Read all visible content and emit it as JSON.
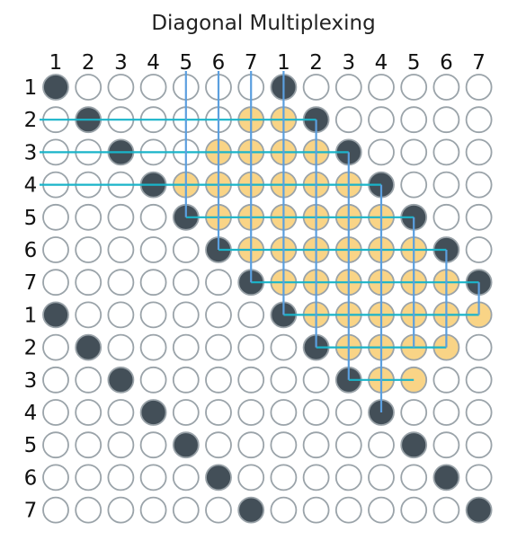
{
  "title": "Diagonal Multiplexing",
  "column_labels": [
    "1",
    "2",
    "3",
    "4",
    "5",
    "6",
    "7",
    "1",
    "2",
    "3",
    "4",
    "5",
    "6",
    "7"
  ],
  "row_labels": [
    "1",
    "2",
    "3",
    "4",
    "5",
    "6",
    "7",
    "1",
    "2",
    "3",
    "4",
    "5",
    "6",
    "7"
  ],
  "colors": {
    "off": "#ffffff",
    "on": "#434f58",
    "lit": "#f9d486",
    "ring": "#9aa3a9",
    "horizontal_wire": "#1ab4c9",
    "vertical_wire": "#5b9fdf"
  },
  "grid": [
    "DOOOOOODOOOOOO",
    "ODOOOOLLDOOOOO",
    "OODOOLLLLDOOOO",
    "OOODLLLLLLDOOO",
    "OOOODLLLLLLDOO",
    "OOOOODLLLLLLDO",
    "OOOOOODLLLLLLD",
    "DOOOOOODLLLLLL",
    "ODOOOOOODLLLLO",
    "OODOOOOOODLLOO",
    "OOODOOOOOODOOO",
    "OOOODOOOOOODOO",
    "OOOOODOOOOOODO",
    "OOOOOODOOOOOOD"
  ],
  "horizontal_wires": [
    {
      "row": 1,
      "from_col": 0,
      "to_col": 8
    },
    {
      "row": 2,
      "from_col": 0,
      "to_col": 9
    },
    {
      "row": 3,
      "from_col": 0,
      "to_col": 10
    },
    {
      "row": 4,
      "from_col": 4,
      "to_col": 11
    },
    {
      "row": 5,
      "from_col": 5,
      "to_col": 12
    },
    {
      "row": 6,
      "from_col": 6,
      "to_col": 13
    },
    {
      "row": 7,
      "from_col": 7,
      "to_col": 13
    },
    {
      "row": 8,
      "from_col": 8,
      "to_col": 12
    },
    {
      "row": 9,
      "from_col": 9,
      "to_col": 11
    }
  ],
  "vertical_wires": [
    {
      "col": 4,
      "from_row": -0.5,
      "to_row": 4
    },
    {
      "col": 5,
      "from_row": -0.5,
      "to_row": 5
    },
    {
      "col": 6,
      "from_row": -0.5,
      "to_row": 6
    },
    {
      "col": 7,
      "from_row": -0.5,
      "to_row": 7
    },
    {
      "col": 8,
      "from_row": 1,
      "to_row": 8
    },
    {
      "col": 9,
      "from_row": 2,
      "to_row": 9
    },
    {
      "col": 10,
      "from_row": 3,
      "to_row": 10
    },
    {
      "col": 11,
      "from_row": 4,
      "to_row": 8
    },
    {
      "col": 12,
      "from_row": 5,
      "to_row": 8
    },
    {
      "col": 13,
      "from_row": 6,
      "to_row": 7
    }
  ]
}
